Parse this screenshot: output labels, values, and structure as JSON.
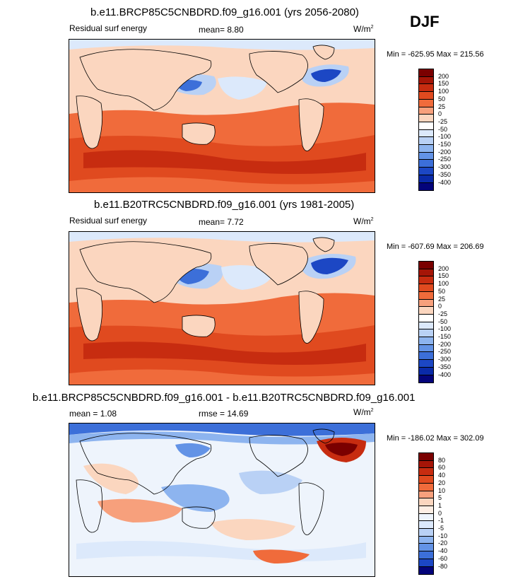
{
  "season": "DJF",
  "panels": [
    {
      "title": "b.e11.BRCP85C5CNBDRD.f09_g16.001 (yrs 2056-2080)",
      "left_label": "Residual surf energy",
      "center_label": "mean=  8.80",
      "units": "W/m",
      "units_sup": "2",
      "minmax": "Min = -625.95 Max = 215.56",
      "colorbar": {
        "levels": [
          "200",
          "150",
          "100",
          "50",
          "25",
          "0",
          "-25",
          "-50",
          "-100",
          "-150",
          "-200",
          "-250",
          "-300",
          "-350",
          "-400"
        ],
        "colors": [
          "#7a0000",
          "#a51507",
          "#c72c10",
          "#e04a1f",
          "#f06b3b",
          "#f7a07c",
          "#fbd6bf",
          "#ffffff",
          "#dce9fb",
          "#b9d1f5",
          "#8db4ef",
          "#6393e6",
          "#3c6fd9",
          "#1c47c4",
          "#0a2aa8",
          "#04047a"
        ]
      }
    },
    {
      "title": "b.e11.B20TRC5CNBDRD.f09_g16.001 (yrs 1981-2005)",
      "left_label": "Residual surf energy",
      "center_label": "mean=  7.72",
      "units": "W/m",
      "units_sup": "2",
      "minmax": "Min = -607.69 Max = 206.69",
      "colorbar": {
        "levels": [
          "200",
          "150",
          "100",
          "50",
          "25",
          "0",
          "-25",
          "-50",
          "-100",
          "-150",
          "-200",
          "-250",
          "-300",
          "-350",
          "-400"
        ],
        "colors": [
          "#7a0000",
          "#a51507",
          "#c72c10",
          "#e04a1f",
          "#f06b3b",
          "#f7a07c",
          "#fbd6bf",
          "#ffffff",
          "#dce9fb",
          "#b9d1f5",
          "#8db4ef",
          "#6393e6",
          "#3c6fd9",
          "#1c47c4",
          "#0a2aa8",
          "#04047a"
        ]
      }
    },
    {
      "title": "b.e11.BRCP85C5CNBDRD.f09_g16.001 - b.e11.B20TRC5CNBDRD.f09_g16.001",
      "left_label": "mean =  1.08",
      "center_label": "rmse =  14.69",
      "units": "W/m",
      "units_sup": "2",
      "minmax": "Min = -186.02 Max = 302.09",
      "colorbar": {
        "levels": [
          "80",
          "60",
          "40",
          "20",
          "10",
          "5",
          "1",
          "0",
          "-1",
          "-5",
          "-10",
          "-20",
          "-40",
          "-60",
          "-80"
        ],
        "colors": [
          "#7a0000",
          "#a51507",
          "#c72c10",
          "#e04a1f",
          "#f06b3b",
          "#f7a07c",
          "#fbd6bf",
          "#fdeee4",
          "#eef4fc",
          "#dce9fb",
          "#b9d1f5",
          "#8db4ef",
          "#6393e6",
          "#3c6fd9",
          "#1c47c4",
          "#04047a"
        ]
      }
    }
  ],
  "chart_data": [
    {
      "type": "heatmap",
      "title": "b.e11.BRCP85C5CNBDRD.f09_g16.001 (yrs 2056-2080)",
      "variable": "Residual surf energy",
      "units": "W/m2",
      "mean": 8.8,
      "min": -625.95,
      "max": 215.56,
      "contour_levels": [
        -400,
        -350,
        -300,
        -250,
        -200,
        -150,
        -100,
        -50,
        -25,
        0,
        25,
        50,
        100,
        150,
        200
      ]
    },
    {
      "type": "heatmap",
      "title": "b.e11.B20TRC5CNBDRD.f09_g16.001 (yrs 1981-2005)",
      "variable": "Residual surf energy",
      "units": "W/m2",
      "mean": 7.72,
      "min": -607.69,
      "max": 206.69,
      "contour_levels": [
        -400,
        -350,
        -300,
        -250,
        -200,
        -150,
        -100,
        -50,
        -25,
        0,
        25,
        50,
        100,
        150,
        200
      ]
    },
    {
      "type": "heatmap",
      "title": "b.e11.BRCP85C5CNBDRD.f09_g16.001 - b.e11.B20TRC5CNBDRD.f09_g16.001",
      "units": "W/m2",
      "mean": 1.08,
      "rmse": 14.69,
      "min": -186.02,
      "max": 302.09,
      "contour_levels": [
        -80,
        -60,
        -40,
        -20,
        -10,
        -5,
        -1,
        0,
        1,
        5,
        10,
        20,
        40,
        60,
        80
      ]
    }
  ]
}
